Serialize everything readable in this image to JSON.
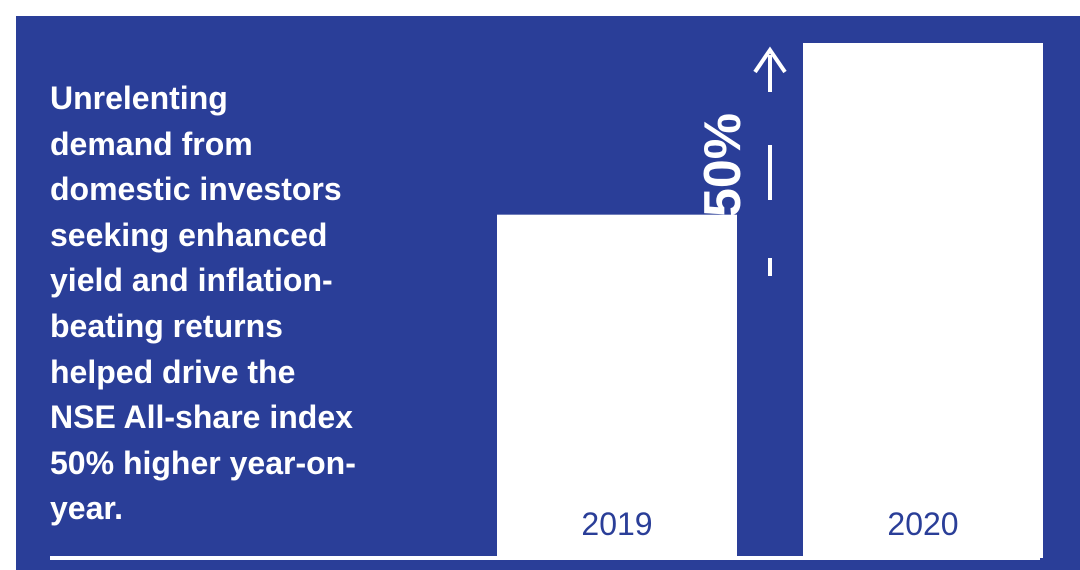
{
  "panel": {
    "background": "#2a3e98",
    "text": "Unrelenting\ndemand from\ndomestic   investors\nseeking enhanced\nyield and inflation-\nbeating returns\nhelped drive the\nNSE All-share index\n50% higher year-on-\nyear."
  },
  "chart_data": {
    "type": "bar",
    "categories": [
      "2019",
      "2020"
    ],
    "values": [
      100,
      150
    ],
    "ylim": [
      0,
      150
    ],
    "title": "",
    "xlabel": "",
    "ylabel": "",
    "grid": false,
    "annotation": {
      "text": "50%",
      "icon": "arrow-up-icon"
    },
    "colors": {
      "bar": "#ffffff",
      "tick_label": "#2a3e98",
      "annotation": "#ffffff"
    }
  }
}
